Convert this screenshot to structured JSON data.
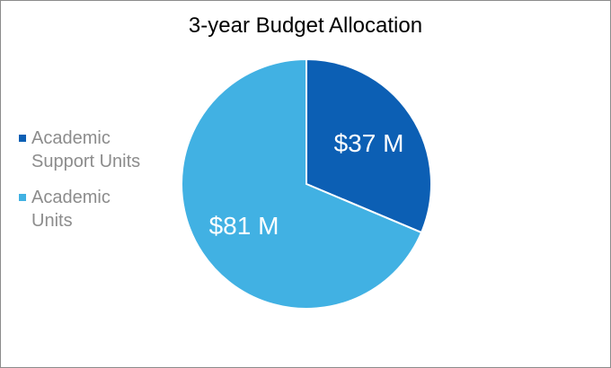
{
  "chart_data": {
    "type": "pie",
    "title": "3-year Budget Allocation",
    "slices": [
      {
        "label": "Academic Support Units",
        "value": 37,
        "display": "$37 M",
        "color": "#0c5fb4"
      },
      {
        "label": "Academic Units",
        "value": 81,
        "display": "$81 M",
        "color": "#41b1e3"
      }
    ],
    "legend_position": "left",
    "legend_lines": [
      [
        "Academic",
        "Support Units"
      ],
      [
        "Academic",
        "Units"
      ]
    ]
  }
}
